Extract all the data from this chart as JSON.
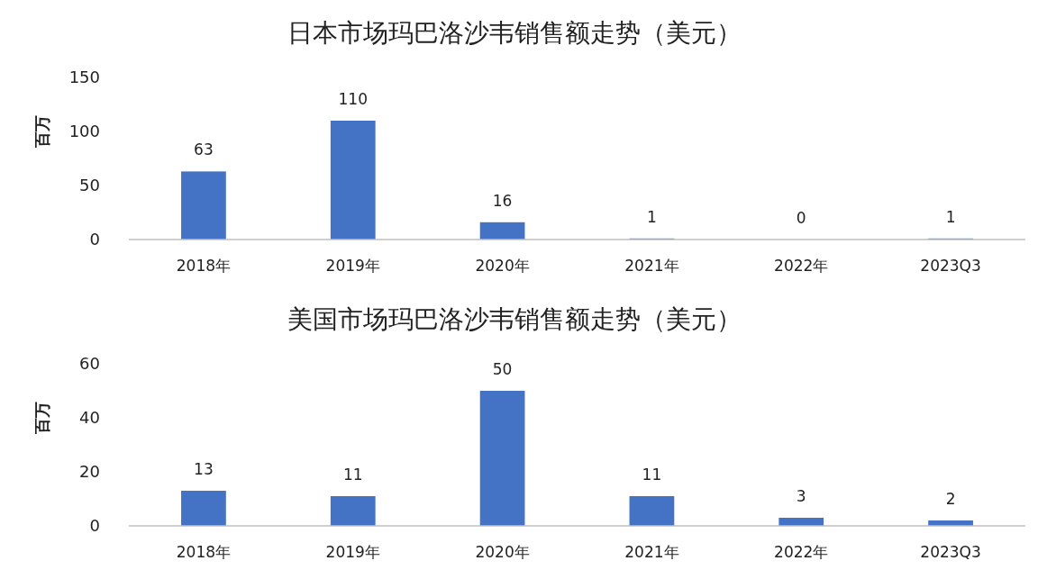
{
  "chart_data": [
    {
      "type": "bar",
      "title": "日本市场玛巴洛沙韦销售额走势（美元）",
      "ylabel": "百万",
      "categories": [
        "2018年",
        "2019年",
        "2020年",
        "2021年",
        "2022年",
        "2023Q3"
      ],
      "values": [
        63,
        110,
        16,
        1,
        0,
        1
      ],
      "color": "#4472c4",
      "ylim": [
        0,
        150
      ],
      "yticks": [
        0,
        50,
        100,
        150
      ],
      "data_labels": true
    },
    {
      "type": "bar",
      "title": "美国市场玛巴洛沙韦销售额走势（美元）",
      "ylabel": "百万",
      "categories": [
        "2018年",
        "2019年",
        "2020年",
        "2021年",
        "2022年",
        "2023Q3"
      ],
      "values": [
        13,
        11,
        50,
        11,
        3,
        2
      ],
      "color": "#4472c4",
      "ylim": [
        0,
        60
      ],
      "yticks": [
        0,
        20,
        40,
        60
      ],
      "data_labels": true
    }
  ]
}
